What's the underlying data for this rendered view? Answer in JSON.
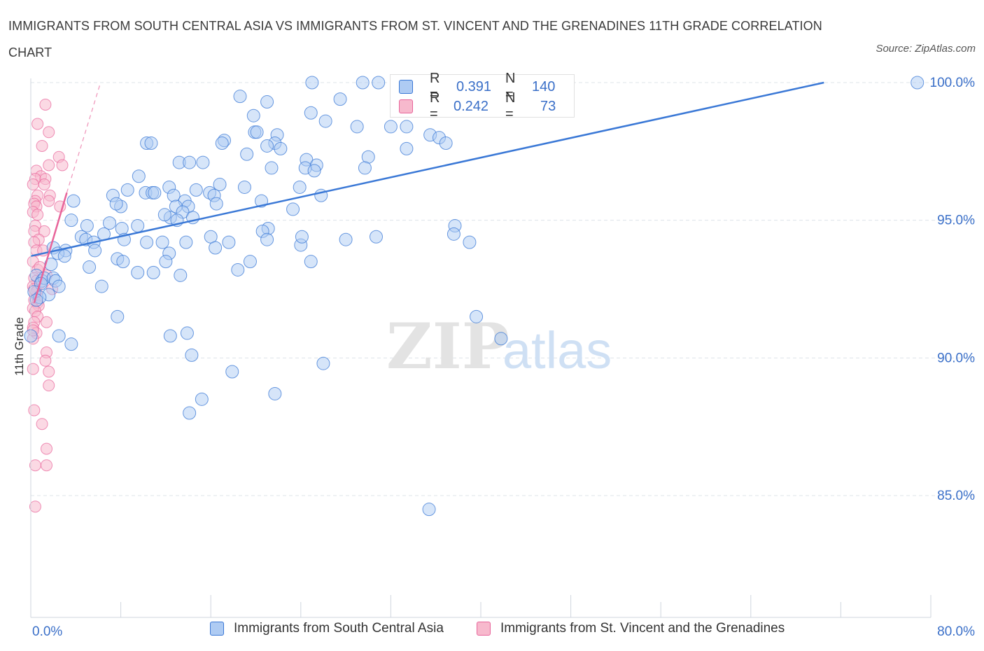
{
  "title": "IMMIGRANTS FROM SOUTH CENTRAL ASIA VS IMMIGRANTS FROM ST. VINCENT AND THE GRENADINES 11TH GRADE CORRELATION CHART",
  "source": "Source: ZipAtlas.com",
  "watermark": {
    "zip": "ZIP",
    "atlas": "atlas"
  },
  "colors": {
    "blue": "#3a78d6",
    "blue_fill": "#aecbf3",
    "pink": "#e8649a",
    "pink_fill": "#f7b9cd",
    "axis_text": "#3a6fc8",
    "grid": "#dde3ea"
  },
  "stats": {
    "blue": {
      "r_label": "R =",
      "r": "0.391",
      "n_label": "N =",
      "n": "140"
    },
    "pink": {
      "r_label": "R =",
      "r": "0.242",
      "n_label": "N =",
      "n": "73"
    }
  },
  "legend": {
    "blue": "Immigrants from South Central Asia",
    "pink": "Immigrants from St. Vincent and the Grenadines"
  },
  "chart_data": {
    "type": "scatter",
    "title": "IMMIGRANTS FROM SOUTH CENTRAL ASIA VS IMMIGRANTS FROM ST. VINCENT AND THE GRENADINES 11TH GRADE CORRELATION CHART",
    "xlabel": "",
    "ylabel": "11th Grade",
    "xlim": [
      0,
      80
    ],
    "ylim": [
      80,
      100
    ],
    "x_tick_labels": [
      "0.0%",
      "80.0%"
    ],
    "y_ticks": [
      85,
      90,
      95,
      100
    ],
    "y_tick_labels": [
      "85.0%",
      "90.0%",
      "95.0%",
      "100.0%"
    ],
    "grid": true,
    "legend_position": "bottom",
    "series": [
      {
        "name": "Immigrants from South Central Asia",
        "color": "#3a78d6",
        "trend": {
          "x": [
            0,
            70.5
          ],
          "y": [
            93.7,
            100.0
          ]
        },
        "points": [
          [
            25,
            100
          ],
          [
            29.5,
            100
          ],
          [
            30.9,
            100
          ],
          [
            78.8,
            100
          ],
          [
            18.6,
            99.5
          ],
          [
            21.0,
            99.3
          ],
          [
            27.5,
            99.4
          ],
          [
            32.8,
            99.2
          ],
          [
            24.9,
            98.9
          ],
          [
            19.8,
            98.8
          ],
          [
            26.2,
            98.6
          ],
          [
            29.0,
            98.4
          ],
          [
            32.0,
            98.4
          ],
          [
            33.4,
            98.4
          ],
          [
            19.9,
            98.2
          ],
          [
            20.1,
            98.2
          ],
          [
            21.9,
            98.1
          ],
          [
            35.5,
            98.1
          ],
          [
            36.3,
            98.0
          ],
          [
            17.2,
            97.9
          ],
          [
            21.7,
            97.8
          ],
          [
            10.3,
            97.8
          ],
          [
            10.7,
            97.8
          ],
          [
            17.0,
            97.8
          ],
          [
            21.0,
            97.7
          ],
          [
            22.2,
            97.6
          ],
          [
            33.4,
            97.6
          ],
          [
            36.9,
            97.8
          ],
          [
            19.2,
            97.4
          ],
          [
            30.0,
            97.3
          ],
          [
            24.5,
            97.2
          ],
          [
            13.2,
            97.1
          ],
          [
            14.1,
            97.1
          ],
          [
            15.3,
            97.1
          ],
          [
            25.4,
            97.0
          ],
          [
            21.4,
            96.9
          ],
          [
            24.4,
            96.9
          ],
          [
            29.7,
            96.9
          ],
          [
            25.2,
            96.8
          ],
          [
            9.6,
            96.6
          ],
          [
            12.3,
            96.2
          ],
          [
            16.8,
            96.3
          ],
          [
            19.0,
            96.2
          ],
          [
            23.9,
            96.2
          ],
          [
            14.7,
            96.1
          ],
          [
            15.9,
            96.0
          ],
          [
            8.6,
            96.1
          ],
          [
            10.2,
            96.0
          ],
          [
            10.8,
            96.0
          ],
          [
            12.7,
            95.9
          ],
          [
            11.0,
            96.0
          ],
          [
            16.3,
            95.9
          ],
          [
            7.3,
            95.9
          ],
          [
            25.8,
            95.9
          ],
          [
            20.5,
            95.7
          ],
          [
            3.8,
            95.7
          ],
          [
            13.7,
            95.7
          ],
          [
            16.5,
            95.6
          ],
          [
            8.0,
            95.5
          ],
          [
            12.9,
            95.5
          ],
          [
            7.6,
            95.6
          ],
          [
            23.3,
            95.4
          ],
          [
            14.0,
            95.5
          ],
          [
            13.5,
            95.3
          ],
          [
            12.4,
            95.1
          ],
          [
            11.9,
            95.2
          ],
          [
            14.4,
            95.1
          ],
          [
            13.0,
            95.0
          ],
          [
            3.6,
            95.0
          ],
          [
            7.0,
            94.9
          ],
          [
            9.5,
            94.8
          ],
          [
            5.0,
            94.8
          ],
          [
            8.1,
            94.7
          ],
          [
            37.7,
            94.8
          ],
          [
            21.1,
            94.7
          ],
          [
            37.6,
            94.5
          ],
          [
            20.6,
            94.6
          ],
          [
            4.5,
            94.4
          ],
          [
            16.0,
            94.4
          ],
          [
            8.3,
            94.3
          ],
          [
            11.7,
            94.2
          ],
          [
            6.5,
            94.5
          ],
          [
            4.9,
            94.3
          ],
          [
            17.6,
            94.2
          ],
          [
            10.3,
            94.2
          ],
          [
            13.8,
            94.2
          ],
          [
            5.6,
            94.2
          ],
          [
            21.0,
            94.3
          ],
          [
            16.4,
            94.0
          ],
          [
            24.0,
            94.1
          ],
          [
            28.0,
            94.3
          ],
          [
            24.1,
            94.4
          ],
          [
            39.0,
            94.2
          ],
          [
            30.7,
            94.4
          ],
          [
            2.0,
            94.0
          ],
          [
            3.1,
            93.9
          ],
          [
            5.7,
            93.9
          ],
          [
            2.4,
            93.8
          ],
          [
            12.3,
            93.8
          ],
          [
            7.7,
            93.6
          ],
          [
            19.5,
            93.5
          ],
          [
            3.0,
            93.7
          ],
          [
            24.9,
            93.5
          ],
          [
            8.2,
            93.5
          ],
          [
            12.0,
            93.5
          ],
          [
            1.8,
            93.4
          ],
          [
            5.2,
            93.3
          ],
          [
            18.4,
            93.2
          ],
          [
            9.5,
            93.1
          ],
          [
            10.9,
            93.1
          ],
          [
            13.3,
            93.0
          ],
          [
            0.5,
            93.0
          ],
          [
            1.0,
            92.8
          ],
          [
            1.2,
            92.9
          ],
          [
            2.0,
            92.9
          ],
          [
            2.2,
            92.8
          ],
          [
            0.9,
            92.7
          ],
          [
            2.5,
            92.6
          ],
          [
            6.3,
            92.6
          ],
          [
            0.3,
            92.4
          ],
          [
            1.6,
            92.3
          ],
          [
            0.8,
            92.2
          ],
          [
            0.5,
            92.1
          ],
          [
            7.7,
            91.5
          ],
          [
            39.6,
            91.5
          ],
          [
            0.0,
            90.8
          ],
          [
            2.5,
            90.8
          ],
          [
            13.9,
            90.9
          ],
          [
            12.4,
            90.8
          ],
          [
            41.8,
            90.7
          ],
          [
            3.6,
            90.5
          ],
          [
            14.3,
            90.1
          ],
          [
            26.0,
            89.8
          ],
          [
            17.9,
            89.5
          ],
          [
            21.7,
            88.7
          ],
          [
            15.2,
            88.5
          ],
          [
            14.1,
            88.0
          ],
          [
            35.4,
            84.5
          ]
        ]
      },
      {
        "name": "Immigrants from St. Vincent and the Grenadines",
        "color": "#e8649a",
        "trend": {
          "x": [
            0.3,
            3.2
          ],
          "y": [
            92.0,
            96.0
          ],
          "dashed_x": [
            3.2,
            6.2
          ],
          "dashed_y": [
            96.0,
            100.0
          ]
        },
        "points": [
          [
            1.3,
            99.2
          ],
          [
            0.6,
            98.5
          ],
          [
            1.6,
            98.2
          ],
          [
            1.0,
            97.7
          ],
          [
            2.5,
            97.3
          ],
          [
            2.8,
            97.0
          ],
          [
            1.6,
            97.0
          ],
          [
            0.5,
            96.8
          ],
          [
            0.9,
            96.6
          ],
          [
            0.4,
            96.5
          ],
          [
            1.3,
            96.5
          ],
          [
            0.2,
            96.3
          ],
          [
            1.2,
            96.3
          ],
          [
            1.7,
            95.9
          ],
          [
            0.6,
            95.9
          ],
          [
            0.4,
            95.7
          ],
          [
            1.6,
            95.7
          ],
          [
            0.3,
            95.6
          ],
          [
            0.5,
            95.5
          ],
          [
            2.6,
            95.5
          ],
          [
            0.2,
            95.3
          ],
          [
            0.6,
            95.2
          ],
          [
            0.4,
            94.8
          ],
          [
            0.3,
            94.6
          ],
          [
            1.2,
            94.6
          ],
          [
            0.7,
            94.3
          ],
          [
            0.3,
            94.2
          ],
          [
            0.5,
            93.9
          ],
          [
            1.1,
            93.9
          ],
          [
            0.2,
            93.5
          ],
          [
            0.6,
            93.2
          ],
          [
            1.4,
            93.0
          ],
          [
            0.3,
            92.9
          ],
          [
            0.5,
            92.8
          ],
          [
            0.8,
            92.7
          ],
          [
            0.2,
            92.6
          ],
          [
            1.9,
            92.5
          ],
          [
            0.4,
            92.3
          ],
          [
            0.3,
            92.1
          ],
          [
            0.6,
            92.0
          ],
          [
            0.7,
            91.9
          ],
          [
            0.2,
            91.8
          ],
          [
            0.4,
            91.7
          ],
          [
            0.6,
            91.5
          ],
          [
            0.3,
            91.3
          ],
          [
            1.4,
            91.3
          ],
          [
            0.2,
            91.1
          ],
          [
            0.5,
            90.9
          ],
          [
            0.2,
            90.7
          ],
          [
            1.4,
            90.2
          ],
          [
            1.3,
            89.9
          ],
          [
            0.2,
            89.6
          ],
          [
            1.6,
            89.5
          ],
          [
            1.6,
            89.0
          ],
          [
            0.3,
            88.1
          ],
          [
            1.0,
            87.6
          ],
          [
            1.4,
            86.7
          ],
          [
            0.4,
            86.1
          ],
          [
            1.4,
            86.1
          ],
          [
            0.4,
            84.6
          ],
          [
            0.3,
            92.5
          ],
          [
            0.5,
            92.4
          ],
          [
            0.2,
            91.0
          ],
          [
            0.8,
            93.3
          ]
        ]
      }
    ]
  }
}
